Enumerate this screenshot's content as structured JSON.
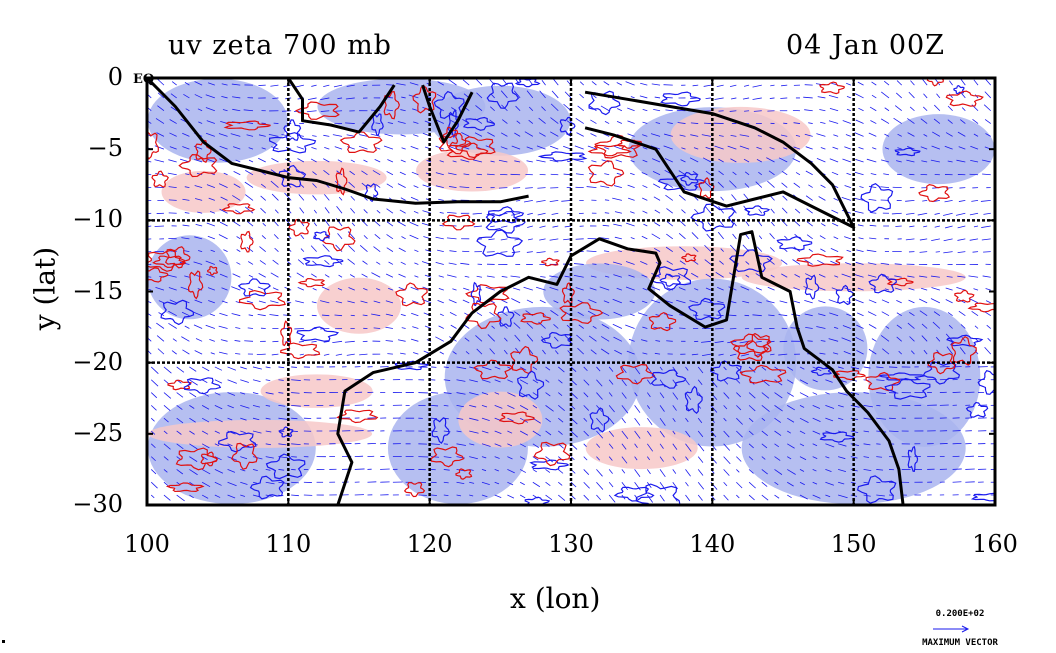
{
  "plot": {
    "title_left": "uv zeta 700 mb",
    "title_right": "04 Jan 00Z",
    "xlabel": "x (lon)",
    "ylabel": "y (lat)",
    "equator_label": "EQ",
    "vector_ref_value": "0.200E+02",
    "vector_ref_label": "MAXIMUM VECTOR"
  },
  "chart_data": {
    "type": "map",
    "variable": "uv zeta 700 mb",
    "time": "04 Jan 00Z",
    "xlim": [
      100,
      160
    ],
    "ylim": [
      -30,
      0
    ],
    "xticks": [
      100,
      110,
      120,
      130,
      140,
      150,
      160
    ],
    "yticks": [
      0,
      -5,
      -10,
      -15,
      -20,
      -25,
      -30
    ],
    "xtick_labels": [
      "100",
      "110",
      "120",
      "130",
      "140",
      "150",
      "160"
    ],
    "ytick_labels": [
      "0",
      "−5",
      "−10",
      "−15",
      "−20",
      "−25",
      "−30"
    ],
    "grid": true,
    "grid_lon": [
      110,
      120,
      130,
      140,
      150
    ],
    "grid_lat": [
      -10,
      -20
    ],
    "colors": {
      "positive_fill": "#f7c8c8",
      "positive_contour": "#e01010",
      "negative_fill": "#a9b4ee",
      "negative_contour": "#1a1aee",
      "vectors": "#1a1aee",
      "coastline": "#000000"
    },
    "coastlines": [
      {
        "name": "sumatra_java",
        "lonlat": [
          [
            100,
            0
          ],
          [
            102,
            -2
          ],
          [
            104,
            -4.5
          ],
          [
            106,
            -6
          ],
          [
            108,
            -6.5
          ],
          [
            110,
            -7
          ],
          [
            112,
            -7.2
          ],
          [
            114,
            -7.8
          ],
          [
            116,
            -8.5
          ],
          [
            119,
            -8.8
          ],
          [
            122,
            -8.7
          ],
          [
            125,
            -8.7
          ],
          [
            127,
            -8.3
          ]
        ]
      },
      {
        "name": "borneo",
        "lonlat": [
          [
            110,
            0
          ],
          [
            111,
            -1.5
          ],
          [
            111,
            -3
          ],
          [
            113,
            -3.3
          ],
          [
            115,
            -3.8
          ],
          [
            116.5,
            -2
          ],
          [
            117.5,
            -0.5
          ]
        ]
      },
      {
        "name": "sulawesi",
        "lonlat": [
          [
            119.5,
            -0.5
          ],
          [
            120,
            -2
          ],
          [
            121,
            -4.5
          ],
          [
            122,
            -3
          ],
          [
            123,
            -1
          ]
        ]
      },
      {
        "name": "new_guinea",
        "lonlat": [
          [
            131,
            -1
          ],
          [
            134,
            -1.5
          ],
          [
            137,
            -2
          ],
          [
            140,
            -2.5
          ],
          [
            143,
            -3.5
          ],
          [
            145,
            -4.5
          ],
          [
            147,
            -6
          ],
          [
            148.5,
            -7.5
          ],
          [
            150,
            -10.5
          ],
          [
            147,
            -9
          ],
          [
            145,
            -8
          ],
          [
            143,
            -8.5
          ],
          [
            141,
            -9
          ],
          [
            138,
            -8
          ],
          [
            136,
            -5
          ],
          [
            133,
            -4
          ],
          [
            131,
            -3.5
          ]
        ]
      },
      {
        "name": "australia",
        "lonlat": [
          [
            113.5,
            -30
          ],
          [
            114.5,
            -27
          ],
          [
            113.5,
            -25
          ],
          [
            114,
            -22
          ],
          [
            116,
            -20.7
          ],
          [
            119,
            -20
          ],
          [
            121.5,
            -18.5
          ],
          [
            123,
            -16.5
          ],
          [
            125,
            -15
          ],
          [
            127,
            -14
          ],
          [
            129,
            -14.5
          ],
          [
            130,
            -12.5
          ],
          [
            132,
            -11.3
          ],
          [
            134,
            -12
          ],
          [
            136,
            -12.3
          ],
          [
            136.3,
            -13
          ],
          [
            135.5,
            -14.8
          ],
          [
            137,
            -16
          ],
          [
            139.5,
            -17.5
          ],
          [
            141,
            -17
          ],
          [
            141.5,
            -14
          ],
          [
            142,
            -11
          ],
          [
            142.8,
            -10.8
          ],
          [
            143.5,
            -14
          ],
          [
            145.5,
            -15
          ],
          [
            146,
            -17.5
          ],
          [
            146.5,
            -19
          ],
          [
            148.5,
            -20.5
          ],
          [
            149.5,
            -22
          ],
          [
            151,
            -23.5
          ],
          [
            152.5,
            -25.5
          ],
          [
            153.2,
            -27.5
          ],
          [
            153.5,
            -30
          ]
        ]
      }
    ],
    "vector_reference": {
      "value": "0.200E+02",
      "label": "MAXIMUM VECTOR"
    }
  }
}
